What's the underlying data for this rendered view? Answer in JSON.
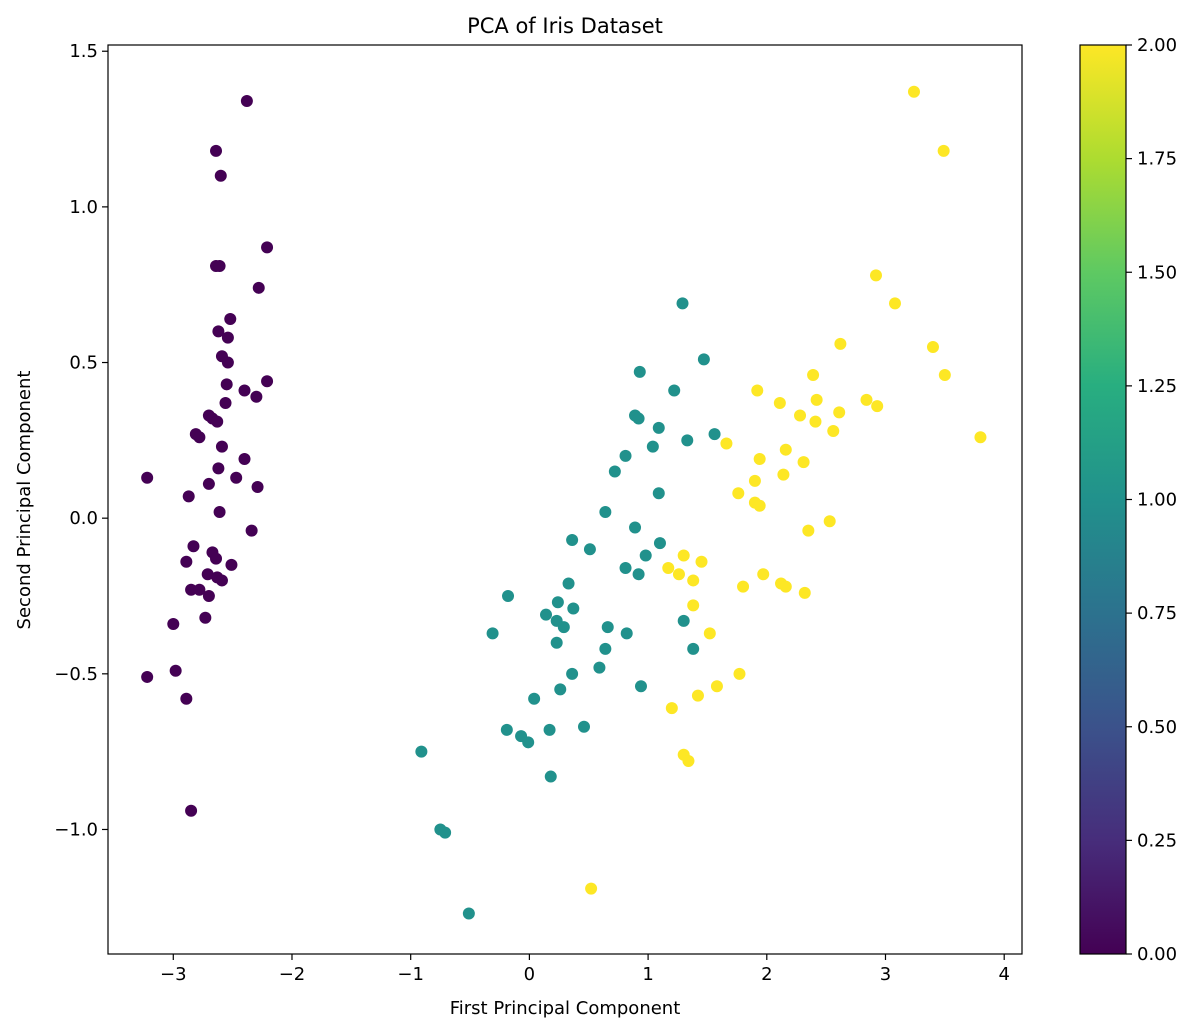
{
  "chart_data": {
    "type": "scatter",
    "title": "PCA of Iris Dataset",
    "xlabel": "First Principal Component",
    "ylabel": "Second Principal Component",
    "xlim": [
      -3.55,
      4.15
    ],
    "ylim": [
      -1.4,
      1.52
    ],
    "xticks": [
      -3,
      -2,
      -1,
      0,
      1,
      2,
      3,
      4
    ],
    "xtick_labels": [
      "−3",
      "−2",
      "−1",
      "0",
      "1",
      "2",
      "3",
      "4"
    ],
    "yticks": [
      -1.0,
      -0.5,
      0.0,
      0.5,
      1.0,
      1.5
    ],
    "ytick_labels": [
      "−1.0",
      "−0.5",
      "0.0",
      "0.5",
      "1.0",
      "1.5"
    ],
    "grid": false,
    "colormap": "viridis",
    "colorbar": {
      "range": [
        0.0,
        2.0
      ],
      "ticks": [
        0.0,
        0.25,
        0.5,
        0.75,
        1.0,
        1.25,
        1.5,
        1.75,
        2.0
      ],
      "tick_labels": [
        "0.00",
        "0.25",
        "0.50",
        "0.75",
        "1.00",
        "1.25",
        "1.50",
        "1.75",
        "2.00"
      ]
    },
    "class_colors": [
      "#440154",
      "#21918c",
      "#fde725"
    ],
    "points": [
      {
        "x": -2.38,
        "y": 1.34,
        "c": 0
      },
      {
        "x": -2.64,
        "y": 1.18,
        "c": 0
      },
      {
        "x": -2.6,
        "y": 1.1,
        "c": 0
      },
      {
        "x": -2.21,
        "y": 0.87,
        "c": 0
      },
      {
        "x": -2.64,
        "y": 0.81,
        "c": 0
      },
      {
        "x": -2.61,
        "y": 0.81,
        "c": 0
      },
      {
        "x": -2.28,
        "y": 0.74,
        "c": 0
      },
      {
        "x": -2.52,
        "y": 0.64,
        "c": 0
      },
      {
        "x": -2.62,
        "y": 0.6,
        "c": 0
      },
      {
        "x": -2.54,
        "y": 0.58,
        "c": 0
      },
      {
        "x": -2.59,
        "y": 0.52,
        "c": 0
      },
      {
        "x": -2.54,
        "y": 0.5,
        "c": 0
      },
      {
        "x": -2.55,
        "y": 0.43,
        "c": 0
      },
      {
        "x": -2.21,
        "y": 0.44,
        "c": 0
      },
      {
        "x": -2.4,
        "y": 0.41,
        "c": 0
      },
      {
        "x": -2.3,
        "y": 0.39,
        "c": 0
      },
      {
        "x": -2.56,
        "y": 0.37,
        "c": 0
      },
      {
        "x": -2.7,
        "y": 0.33,
        "c": 0
      },
      {
        "x": -2.67,
        "y": 0.32,
        "c": 0
      },
      {
        "x": -2.63,
        "y": 0.31,
        "c": 0
      },
      {
        "x": -2.81,
        "y": 0.27,
        "c": 0
      },
      {
        "x": -2.78,
        "y": 0.26,
        "c": 0
      },
      {
        "x": -2.59,
        "y": 0.23,
        "c": 0
      },
      {
        "x": -2.4,
        "y": 0.19,
        "c": 0
      },
      {
        "x": -2.62,
        "y": 0.16,
        "c": 0
      },
      {
        "x": -2.47,
        "y": 0.13,
        "c": 0
      },
      {
        "x": -3.22,
        "y": 0.13,
        "c": 0
      },
      {
        "x": -2.7,
        "y": 0.11,
        "c": 0
      },
      {
        "x": -2.29,
        "y": 0.1,
        "c": 0
      },
      {
        "x": -2.87,
        "y": 0.07,
        "c": 0
      },
      {
        "x": -2.61,
        "y": 0.02,
        "c": 0
      },
      {
        "x": -2.34,
        "y": -0.04,
        "c": 0
      },
      {
        "x": -2.83,
        "y": -0.09,
        "c": 0
      },
      {
        "x": -2.67,
        "y": -0.11,
        "c": 0
      },
      {
        "x": -2.64,
        "y": -0.13,
        "c": 0
      },
      {
        "x": -2.89,
        "y": -0.14,
        "c": 0
      },
      {
        "x": -2.51,
        "y": -0.15,
        "c": 0
      },
      {
        "x": -2.71,
        "y": -0.18,
        "c": 0
      },
      {
        "x": -2.63,
        "y": -0.19,
        "c": 0
      },
      {
        "x": -2.59,
        "y": -0.2,
        "c": 0
      },
      {
        "x": -2.85,
        "y": -0.23,
        "c": 0
      },
      {
        "x": -2.78,
        "y": -0.23,
        "c": 0
      },
      {
        "x": -2.7,
        "y": -0.25,
        "c": 0
      },
      {
        "x": -2.73,
        "y": -0.32,
        "c": 0
      },
      {
        "x": -3.0,
        "y": -0.34,
        "c": 0
      },
      {
        "x": -2.98,
        "y": -0.49,
        "c": 0
      },
      {
        "x": -3.22,
        "y": -0.51,
        "c": 0
      },
      {
        "x": -2.89,
        "y": -0.58,
        "c": 0
      },
      {
        "x": -2.85,
        "y": -0.94,
        "c": 0
      },
      {
        "x": 1.29,
        "y": 0.69,
        "c": 1
      },
      {
        "x": 1.47,
        "y": 0.51,
        "c": 1
      },
      {
        "x": 0.93,
        "y": 0.47,
        "c": 1
      },
      {
        "x": 1.22,
        "y": 0.41,
        "c": 1
      },
      {
        "x": 0.89,
        "y": 0.33,
        "c": 1
      },
      {
        "x": 0.92,
        "y": 0.32,
        "c": 1
      },
      {
        "x": 1.09,
        "y": 0.29,
        "c": 1
      },
      {
        "x": 1.56,
        "y": 0.27,
        "c": 1
      },
      {
        "x": 1.33,
        "y": 0.25,
        "c": 1
      },
      {
        "x": 1.04,
        "y": 0.23,
        "c": 1
      },
      {
        "x": 0.81,
        "y": 0.2,
        "c": 1
      },
      {
        "x": 0.72,
        "y": 0.15,
        "c": 1
      },
      {
        "x": 1.09,
        "y": 0.08,
        "c": 1
      },
      {
        "x": 0.64,
        "y": 0.02,
        "c": 1
      },
      {
        "x": 0.89,
        "y": -0.03,
        "c": 1
      },
      {
        "x": 0.36,
        "y": -0.07,
        "c": 1
      },
      {
        "x": 1.1,
        "y": -0.08,
        "c": 1
      },
      {
        "x": 0.51,
        "y": -0.1,
        "c": 1
      },
      {
        "x": 0.98,
        "y": -0.12,
        "c": 1
      },
      {
        "x": 0.81,
        "y": -0.16,
        "c": 1
      },
      {
        "x": 0.92,
        "y": -0.18,
        "c": 1
      },
      {
        "x": 0.33,
        "y": -0.21,
        "c": 1
      },
      {
        "x": -0.18,
        "y": -0.25,
        "c": 1
      },
      {
        "x": 0.24,
        "y": -0.27,
        "c": 1
      },
      {
        "x": 0.37,
        "y": -0.29,
        "c": 1
      },
      {
        "x": 0.14,
        "y": -0.31,
        "c": 1
      },
      {
        "x": 0.23,
        "y": -0.33,
        "c": 1
      },
      {
        "x": 0.29,
        "y": -0.35,
        "c": 1
      },
      {
        "x": 1.3,
        "y": -0.33,
        "c": 1
      },
      {
        "x": 0.66,
        "y": -0.35,
        "c": 1
      },
      {
        "x": -0.31,
        "y": -0.37,
        "c": 1
      },
      {
        "x": 0.82,
        "y": -0.37,
        "c": 1
      },
      {
        "x": 0.23,
        "y": -0.4,
        "c": 1
      },
      {
        "x": 0.64,
        "y": -0.42,
        "c": 1
      },
      {
        "x": 1.38,
        "y": -0.42,
        "c": 1
      },
      {
        "x": 0.59,
        "y": -0.48,
        "c": 1
      },
      {
        "x": 0.36,
        "y": -0.5,
        "c": 1
      },
      {
        "x": 0.26,
        "y": -0.55,
        "c": 1
      },
      {
        "x": 0.94,
        "y": -0.54,
        "c": 1
      },
      {
        "x": 0.04,
        "y": -0.58,
        "c": 1
      },
      {
        "x": 0.46,
        "y": -0.67,
        "c": 1
      },
      {
        "x": -0.19,
        "y": -0.68,
        "c": 1
      },
      {
        "x": 0.17,
        "y": -0.68,
        "c": 1
      },
      {
        "x": -0.07,
        "y": -0.7,
        "c": 1
      },
      {
        "x": -0.01,
        "y": -0.72,
        "c": 1
      },
      {
        "x": -0.91,
        "y": -0.75,
        "c": 1
      },
      {
        "x": 0.18,
        "y": -0.83,
        "c": 1
      },
      {
        "x": -0.75,
        "y": -1.0,
        "c": 1
      },
      {
        "x": -0.71,
        "y": -1.01,
        "c": 1
      },
      {
        "x": -0.51,
        "y": -1.27,
        "c": 1
      },
      {
        "x": 3.24,
        "y": 1.37,
        "c": 2
      },
      {
        "x": 3.49,
        "y": 1.18,
        "c": 2
      },
      {
        "x": 2.92,
        "y": 0.78,
        "c": 2
      },
      {
        "x": 3.08,
        "y": 0.69,
        "c": 2
      },
      {
        "x": 2.62,
        "y": 0.56,
        "c": 2
      },
      {
        "x": 3.4,
        "y": 0.55,
        "c": 2
      },
      {
        "x": 2.39,
        "y": 0.46,
        "c": 2
      },
      {
        "x": 3.5,
        "y": 0.46,
        "c": 2
      },
      {
        "x": 1.92,
        "y": 0.41,
        "c": 2
      },
      {
        "x": 2.11,
        "y": 0.37,
        "c": 2
      },
      {
        "x": 2.42,
        "y": 0.38,
        "c": 2
      },
      {
        "x": 2.84,
        "y": 0.38,
        "c": 2
      },
      {
        "x": 2.93,
        "y": 0.36,
        "c": 2
      },
      {
        "x": 2.61,
        "y": 0.34,
        "c": 2
      },
      {
        "x": 2.28,
        "y": 0.33,
        "c": 2
      },
      {
        "x": 2.41,
        "y": 0.31,
        "c": 2
      },
      {
        "x": 2.56,
        "y": 0.28,
        "c": 2
      },
      {
        "x": 3.8,
        "y": 0.26,
        "c": 2
      },
      {
        "x": 1.66,
        "y": 0.24,
        "c": 2
      },
      {
        "x": 2.16,
        "y": 0.22,
        "c": 2
      },
      {
        "x": 1.94,
        "y": 0.19,
        "c": 2
      },
      {
        "x": 2.31,
        "y": 0.18,
        "c": 2
      },
      {
        "x": 2.14,
        "y": 0.14,
        "c": 2
      },
      {
        "x": 1.9,
        "y": 0.12,
        "c": 2
      },
      {
        "x": 1.76,
        "y": 0.08,
        "c": 2
      },
      {
        "x": 1.9,
        "y": 0.05,
        "c": 2
      },
      {
        "x": 1.94,
        "y": 0.04,
        "c": 2
      },
      {
        "x": 2.53,
        "y": -0.01,
        "c": 2
      },
      {
        "x": 2.35,
        "y": -0.04,
        "c": 2
      },
      {
        "x": 1.3,
        "y": -0.12,
        "c": 2
      },
      {
        "x": 1.45,
        "y": -0.14,
        "c": 2
      },
      {
        "x": 1.17,
        "y": -0.16,
        "c": 2
      },
      {
        "x": 1.26,
        "y": -0.18,
        "c": 2
      },
      {
        "x": 1.97,
        "y": -0.18,
        "c": 2
      },
      {
        "x": 1.38,
        "y": -0.2,
        "c": 2
      },
      {
        "x": 2.12,
        "y": -0.21,
        "c": 2
      },
      {
        "x": 2.16,
        "y": -0.22,
        "c": 2
      },
      {
        "x": 1.8,
        "y": -0.22,
        "c": 2
      },
      {
        "x": 2.32,
        "y": -0.24,
        "c": 2
      },
      {
        "x": 1.38,
        "y": -0.28,
        "c": 2
      },
      {
        "x": 1.52,
        "y": -0.37,
        "c": 2
      },
      {
        "x": 1.77,
        "y": -0.5,
        "c": 2
      },
      {
        "x": 1.58,
        "y": -0.54,
        "c": 2
      },
      {
        "x": 1.42,
        "y": -0.57,
        "c": 2
      },
      {
        "x": 1.2,
        "y": -0.61,
        "c": 2
      },
      {
        "x": 1.3,
        "y": -0.76,
        "c": 2
      },
      {
        "x": 1.34,
        "y": -0.78,
        "c": 2
      },
      {
        "x": 0.52,
        "y": -1.19,
        "c": 2
      }
    ]
  }
}
